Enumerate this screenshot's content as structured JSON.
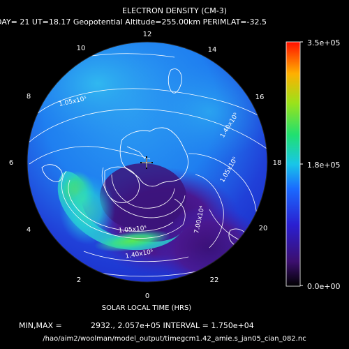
{
  "header": {
    "title": "ELECTRON DENSITY (CM-3)",
    "subtitle": "DAY= 21 UT=18.17 Geopotential Altitude=255.00km PERIMLAT=-32.5"
  },
  "footer": {
    "minmax_label": "MIN,MAX =",
    "minmax_values": "2932., 2.057e+05 INTERVAL =  1.750e+04",
    "filepath": "/hao/aim2/woolman/model_output/timegcm1.42_amie.s_jan05_cian_082.nc"
  },
  "chart_data": {
    "type": "heatmap",
    "projection": "polar-south",
    "title": "ELECTRON DENSITY (CM-3)",
    "xlabel": "SOLAR LOCAL TIME (HRS)",
    "local_time_ticks": [
      "0",
      "2",
      "4",
      "6",
      "8",
      "10",
      "12",
      "14",
      "16",
      "18",
      "20",
      "22"
    ],
    "colorbar": {
      "min_label": "0.0e+00",
      "mid_label": "1.8e+05",
      "max_label": "3.5e+05",
      "range": [
        0,
        350000
      ]
    },
    "contour_labels": [
      {
        "text": "1.05x10⁵",
        "value": 105000
      },
      {
        "text": "1.40x10⁵",
        "value": 140000
      },
      {
        "text": "1.05x10⁵",
        "value": 105000
      },
      {
        "text": "7.00x10⁴",
        "value": 70000
      },
      {
        "text": "1.05x10⁵",
        "value": 105000
      },
      {
        "text": "1.40x10⁵",
        "value": 140000
      }
    ],
    "min": 2932,
    "max": 205700,
    "interval": 17500,
    "grid": false,
    "legend": "right"
  }
}
